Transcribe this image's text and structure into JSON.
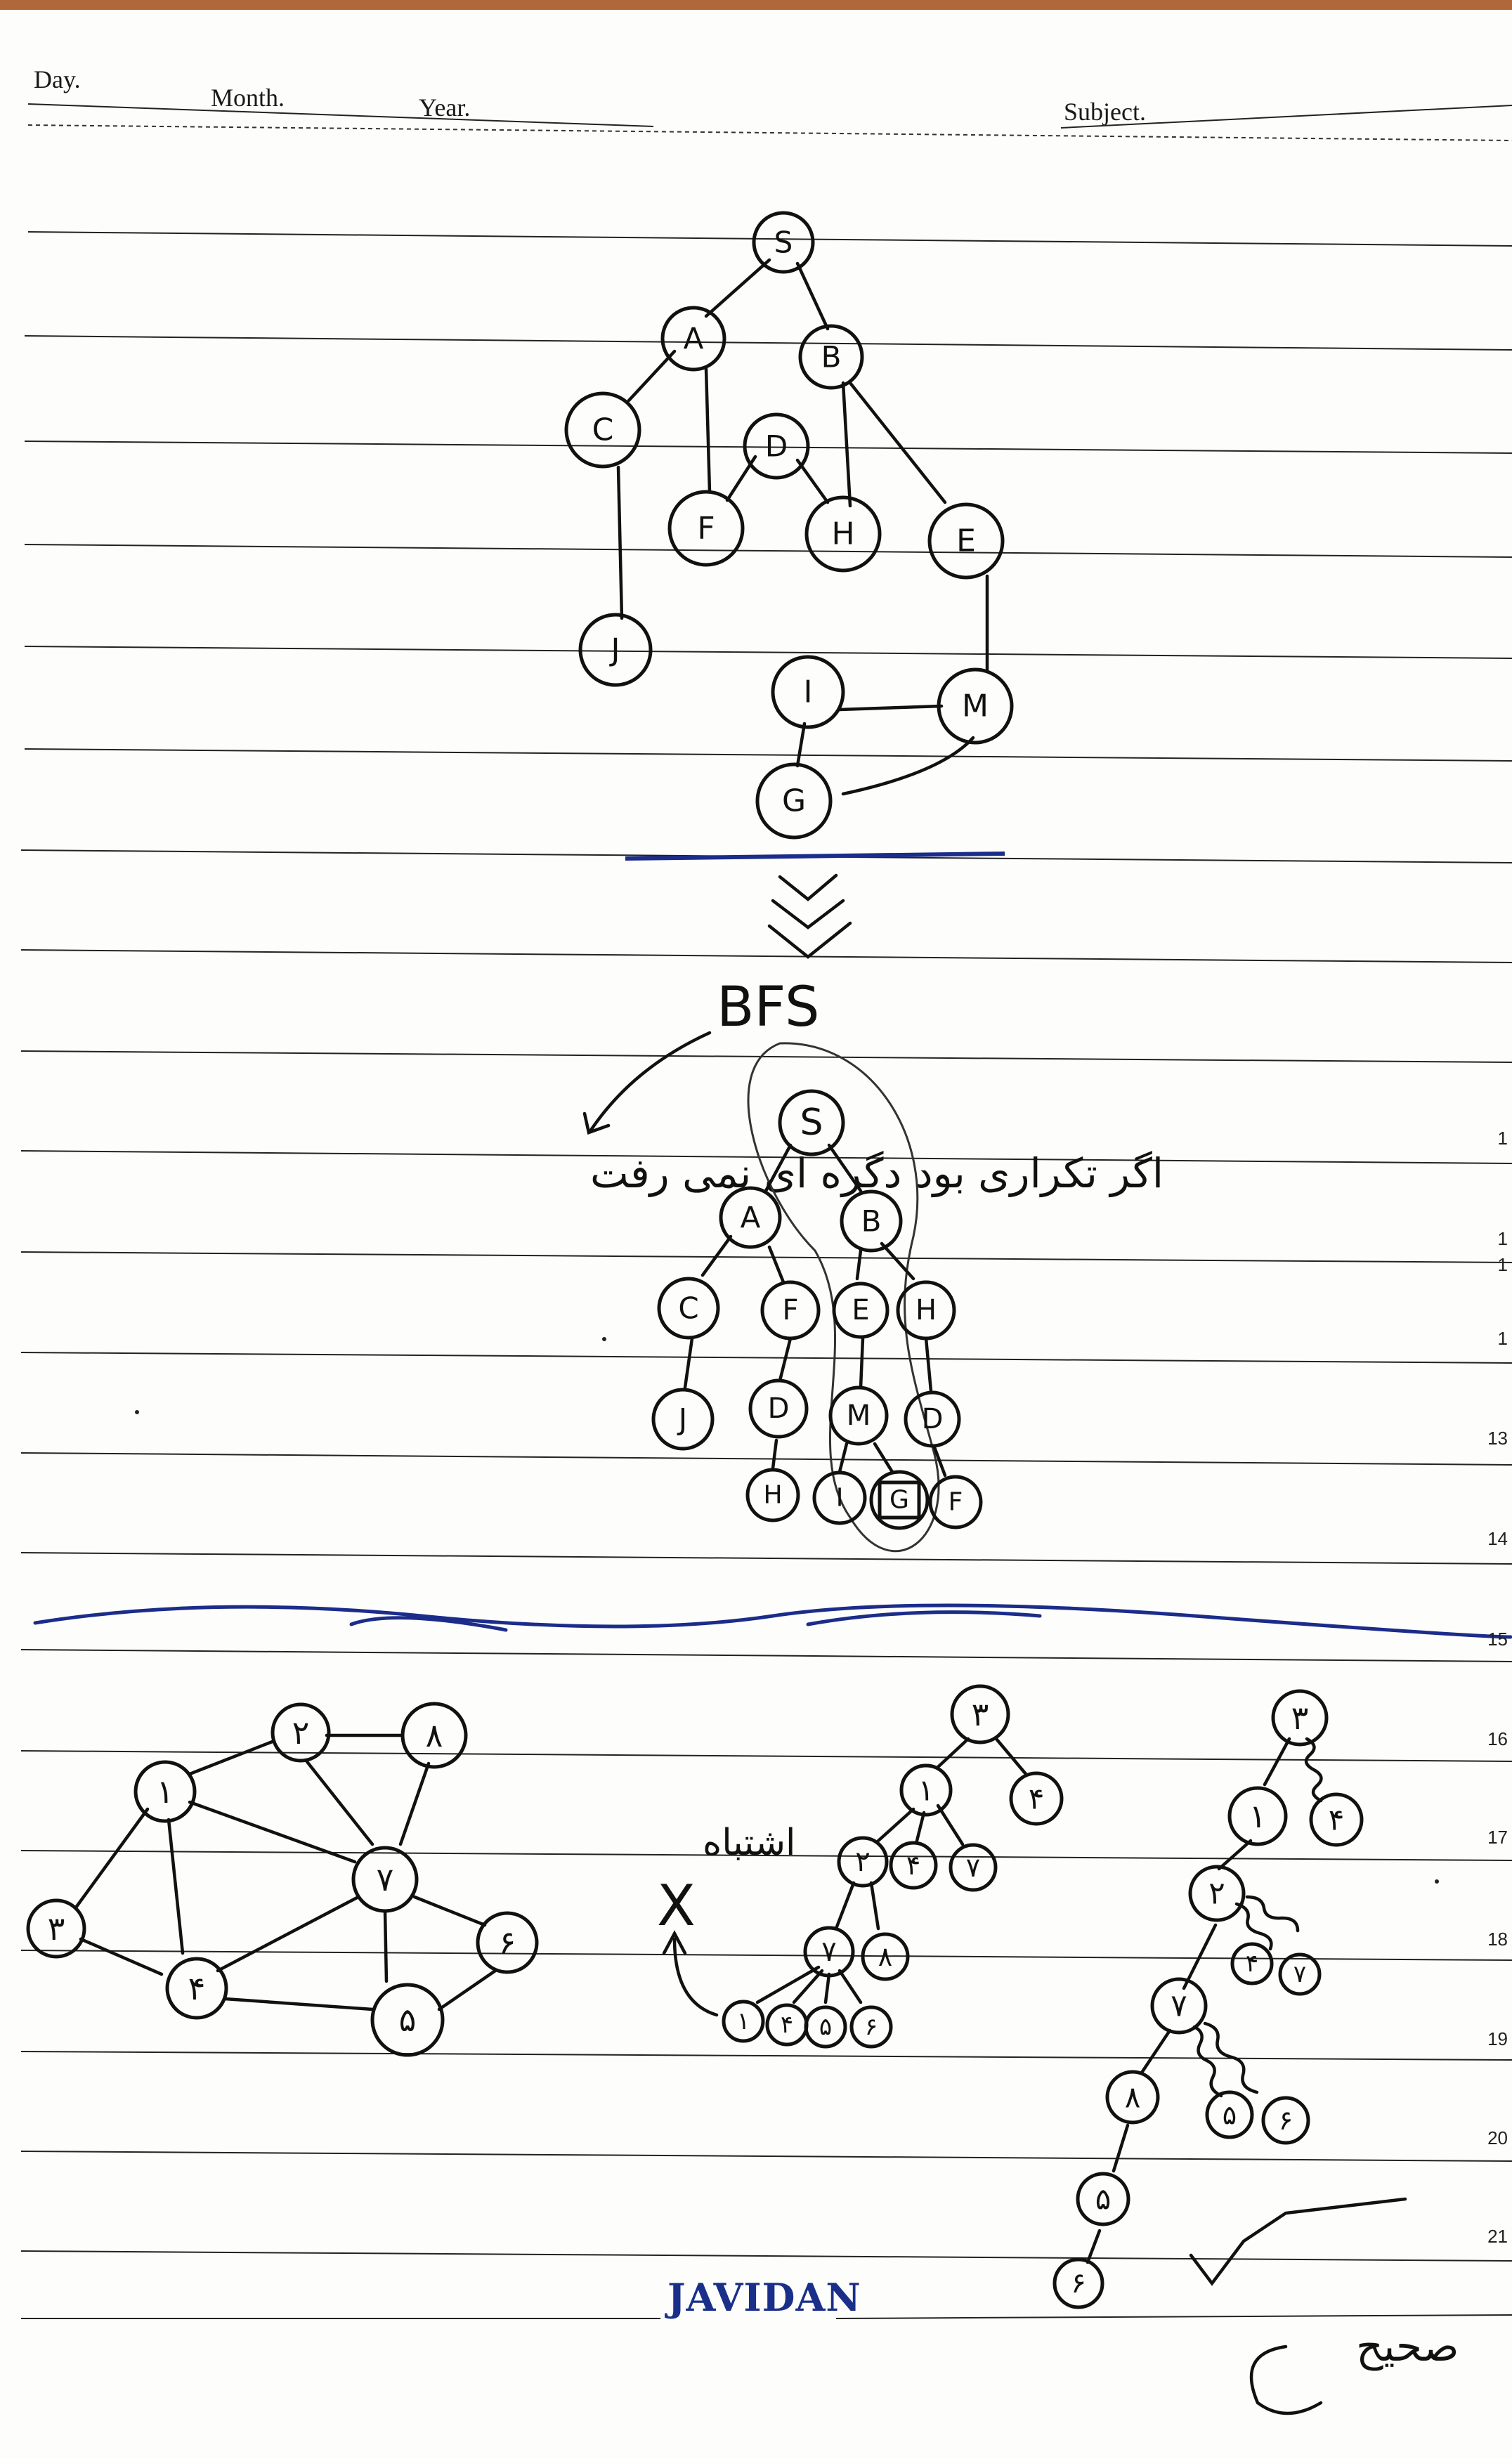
{
  "header": {
    "day_label": "Day.",
    "month_label": "Month.",
    "year_label": "Year.",
    "subject_label": "Subject."
  },
  "footer": {
    "brand": "JAVIDAN"
  },
  "line_numbers": [
    "1",
    "1",
    "1",
    "1",
    "13",
    "14",
    "15",
    "16",
    "17",
    "18",
    "19",
    "20",
    "21"
  ],
  "graph1": {
    "nodes": [
      "S",
      "A",
      "B",
      "C",
      "D",
      "F",
      "H",
      "E",
      "J",
      "I",
      "M",
      "G"
    ],
    "edges": [
      [
        "S",
        "A"
      ],
      [
        "S",
        "B"
      ],
      [
        "A",
        "C"
      ],
      [
        "A",
        "F"
      ],
      [
        "C",
        "J"
      ],
      [
        "D",
        "F"
      ],
      [
        "D",
        "H"
      ],
      [
        "B",
        "H"
      ],
      [
        "B",
        "E"
      ],
      [
        "E",
        "M"
      ],
      [
        "I",
        "M"
      ],
      [
        "I",
        "G"
      ],
      [
        "G",
        "M"
      ]
    ]
  },
  "bfs": {
    "title": "BFS",
    "note_fa": "اگر تکراری بود دگره ای نمی رفت",
    "tree_nodes": [
      "S",
      "A",
      "B",
      "C",
      "F",
      "E",
      "H",
      "J",
      "D",
      "M",
      "D",
      "H",
      "I",
      "G",
      "F"
    ],
    "boxed_node": "G"
  },
  "graph2": {
    "nodes": [
      "۱",
      "۲",
      "۳",
      "۴",
      "۵",
      "۶",
      "۷",
      "۸"
    ],
    "edges": [
      [
        "۱",
        "۲"
      ],
      [
        "۱",
        "۳"
      ],
      [
        "۱",
        "۴"
      ],
      [
        "۱",
        "۷"
      ],
      [
        "۲",
        "۷"
      ],
      [
        "۲",
        "۸"
      ],
      [
        "۸",
        "۷"
      ],
      [
        "۳",
        "۴"
      ],
      [
        "۴",
        "۷"
      ],
      [
        "۴",
        "۵"
      ],
      [
        "۷",
        "۵"
      ],
      [
        "۷",
        "۶"
      ],
      [
        "۶",
        "۵"
      ]
    ]
  },
  "wrong_tree": {
    "label": "اشتباه",
    "mark": "X",
    "nodes": [
      "۳",
      "۱",
      "۴",
      "۲",
      "۴",
      "۷",
      "۷",
      "۸",
      "۱",
      "۴",
      "۵",
      "۶"
    ]
  },
  "right_tree": {
    "label": "صحیح",
    "nodes": [
      "۳",
      "۱",
      "۴",
      "۲",
      "۴",
      "۷",
      "۷",
      "۸",
      "۵",
      "۶",
      "۵",
      "۶"
    ]
  }
}
